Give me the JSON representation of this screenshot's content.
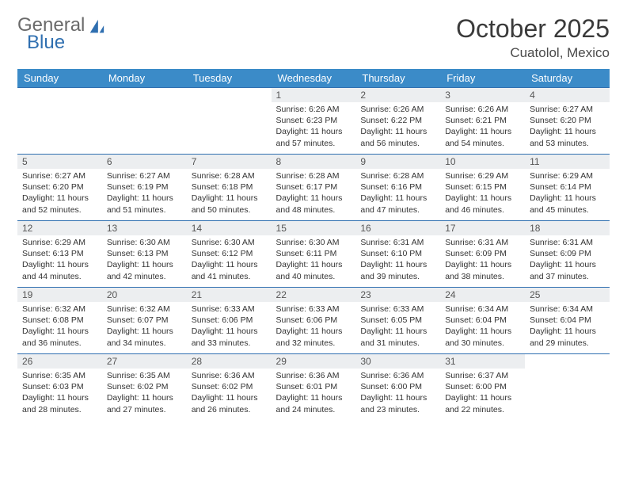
{
  "brand": {
    "name_a": "General",
    "name_b": "Blue"
  },
  "title": "October 2025",
  "location": "Cuatolol, Mexico",
  "colors": {
    "header_bg": "#3b8bc8",
    "border": "#2f6fb0",
    "daynum_bg": "#eceef0",
    "text": "#333333"
  },
  "weekdays": [
    "Sunday",
    "Monday",
    "Tuesday",
    "Wednesday",
    "Thursday",
    "Friday",
    "Saturday"
  ],
  "days": [
    {
      "n": "",
      "sr": "",
      "ss": "",
      "dl": ""
    },
    {
      "n": "",
      "sr": "",
      "ss": "",
      "dl": ""
    },
    {
      "n": "",
      "sr": "",
      "ss": "",
      "dl": ""
    },
    {
      "n": "1",
      "sr": "6:26 AM",
      "ss": "6:23 PM",
      "dl": "11 hours and 57 minutes."
    },
    {
      "n": "2",
      "sr": "6:26 AM",
      "ss": "6:22 PM",
      "dl": "11 hours and 56 minutes."
    },
    {
      "n": "3",
      "sr": "6:26 AM",
      "ss": "6:21 PM",
      "dl": "11 hours and 54 minutes."
    },
    {
      "n": "4",
      "sr": "6:27 AM",
      "ss": "6:20 PM",
      "dl": "11 hours and 53 minutes."
    },
    {
      "n": "5",
      "sr": "6:27 AM",
      "ss": "6:20 PM",
      "dl": "11 hours and 52 minutes."
    },
    {
      "n": "6",
      "sr": "6:27 AM",
      "ss": "6:19 PM",
      "dl": "11 hours and 51 minutes."
    },
    {
      "n": "7",
      "sr": "6:28 AM",
      "ss": "6:18 PM",
      "dl": "11 hours and 50 minutes."
    },
    {
      "n": "8",
      "sr": "6:28 AM",
      "ss": "6:17 PM",
      "dl": "11 hours and 48 minutes."
    },
    {
      "n": "9",
      "sr": "6:28 AM",
      "ss": "6:16 PM",
      "dl": "11 hours and 47 minutes."
    },
    {
      "n": "10",
      "sr": "6:29 AM",
      "ss": "6:15 PM",
      "dl": "11 hours and 46 minutes."
    },
    {
      "n": "11",
      "sr": "6:29 AM",
      "ss": "6:14 PM",
      "dl": "11 hours and 45 minutes."
    },
    {
      "n": "12",
      "sr": "6:29 AM",
      "ss": "6:13 PM",
      "dl": "11 hours and 44 minutes."
    },
    {
      "n": "13",
      "sr": "6:30 AM",
      "ss": "6:13 PM",
      "dl": "11 hours and 42 minutes."
    },
    {
      "n": "14",
      "sr": "6:30 AM",
      "ss": "6:12 PM",
      "dl": "11 hours and 41 minutes."
    },
    {
      "n": "15",
      "sr": "6:30 AM",
      "ss": "6:11 PM",
      "dl": "11 hours and 40 minutes."
    },
    {
      "n": "16",
      "sr": "6:31 AM",
      "ss": "6:10 PM",
      "dl": "11 hours and 39 minutes."
    },
    {
      "n": "17",
      "sr": "6:31 AM",
      "ss": "6:09 PM",
      "dl": "11 hours and 38 minutes."
    },
    {
      "n": "18",
      "sr": "6:31 AM",
      "ss": "6:09 PM",
      "dl": "11 hours and 37 minutes."
    },
    {
      "n": "19",
      "sr": "6:32 AM",
      "ss": "6:08 PM",
      "dl": "11 hours and 36 minutes."
    },
    {
      "n": "20",
      "sr": "6:32 AM",
      "ss": "6:07 PM",
      "dl": "11 hours and 34 minutes."
    },
    {
      "n": "21",
      "sr": "6:33 AM",
      "ss": "6:06 PM",
      "dl": "11 hours and 33 minutes."
    },
    {
      "n": "22",
      "sr": "6:33 AM",
      "ss": "6:06 PM",
      "dl": "11 hours and 32 minutes."
    },
    {
      "n": "23",
      "sr": "6:33 AM",
      "ss": "6:05 PM",
      "dl": "11 hours and 31 minutes."
    },
    {
      "n": "24",
      "sr": "6:34 AM",
      "ss": "6:04 PM",
      "dl": "11 hours and 30 minutes."
    },
    {
      "n": "25",
      "sr": "6:34 AM",
      "ss": "6:04 PM",
      "dl": "11 hours and 29 minutes."
    },
    {
      "n": "26",
      "sr": "6:35 AM",
      "ss": "6:03 PM",
      "dl": "11 hours and 28 minutes."
    },
    {
      "n": "27",
      "sr": "6:35 AM",
      "ss": "6:02 PM",
      "dl": "11 hours and 27 minutes."
    },
    {
      "n": "28",
      "sr": "6:36 AM",
      "ss": "6:02 PM",
      "dl": "11 hours and 26 minutes."
    },
    {
      "n": "29",
      "sr": "6:36 AM",
      "ss": "6:01 PM",
      "dl": "11 hours and 24 minutes."
    },
    {
      "n": "30",
      "sr": "6:36 AM",
      "ss": "6:00 PM",
      "dl": "11 hours and 23 minutes."
    },
    {
      "n": "31",
      "sr": "6:37 AM",
      "ss": "6:00 PM",
      "dl": "11 hours and 22 minutes."
    },
    {
      "n": "",
      "sr": "",
      "ss": "",
      "dl": ""
    }
  ],
  "labels": {
    "sunrise": "Sunrise:",
    "sunset": "Sunset:",
    "daylight": "Daylight:"
  }
}
